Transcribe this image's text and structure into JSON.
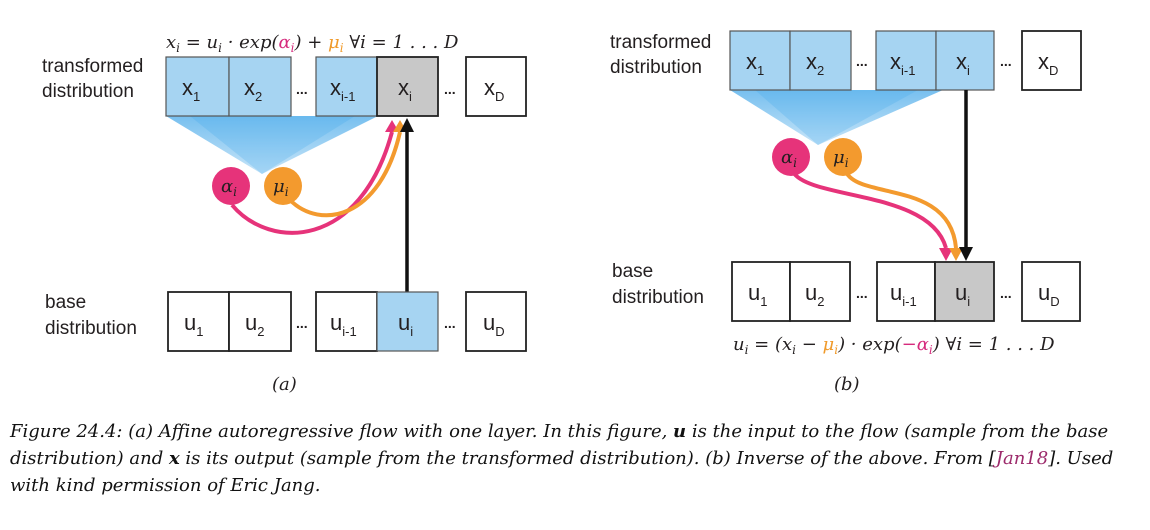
{
  "panel_a": {
    "label": "(a)",
    "equation": {
      "lhs": "x",
      "lhs_sub": "i",
      "mid1": " = u",
      "mid1_sub": "i",
      "mid2": " · exp(",
      "alpha": "α",
      "alpha_sub": "i",
      "mid3": ") + ",
      "mu": "μ",
      "mu_sub": "i",
      "forall": "   ∀i = 1 . . . D"
    },
    "top_label": [
      "transformed",
      "distribution"
    ],
    "bottom_label": [
      "base",
      "distribution"
    ],
    "top_cells": [
      {
        "main": "x",
        "sub": "1"
      },
      {
        "main": "x",
        "sub": "2"
      },
      {
        "main": "x",
        "sub": "i-1"
      },
      {
        "main": "x",
        "sub": "i"
      },
      {
        "main": "x",
        "sub": "D"
      }
    ],
    "bottom_cells": [
      {
        "main": "u",
        "sub": "1"
      },
      {
        "main": "u",
        "sub": "2"
      },
      {
        "main": "u",
        "sub": "i-1"
      },
      {
        "main": "u",
        "sub": "i"
      },
      {
        "main": "u",
        "sub": "D"
      }
    ],
    "alpha_node": {
      "main": "α",
      "sub": "i"
    },
    "mu_node": {
      "main": "μ",
      "sub": "i"
    }
  },
  "panel_b": {
    "label": "(b)",
    "equation": {
      "lhs": "u",
      "lhs_sub": "i",
      "mid1": " = (x",
      "mid1_sub": "i",
      "mid2": " − ",
      "mu": "μ",
      "mu_sub": "i",
      "mid3": ") · exp(",
      "alpha": "−α",
      "alpha_sub": "i",
      "mid4": ")",
      "forall": "   ∀i = 1 . . . D"
    },
    "top_label": [
      "transformed",
      "distribution"
    ],
    "bottom_label": [
      "base",
      "distribution"
    ],
    "top_cells": [
      {
        "main": "x",
        "sub": "1"
      },
      {
        "main": "x",
        "sub": "2"
      },
      {
        "main": "x",
        "sub": "i-1"
      },
      {
        "main": "x",
        "sub": "i"
      },
      {
        "main": "x",
        "sub": "D"
      }
    ],
    "bottom_cells": [
      {
        "main": "u",
        "sub": "1"
      },
      {
        "main": "u",
        "sub": "2"
      },
      {
        "main": "u",
        "sub": "i-1"
      },
      {
        "main": "u",
        "sub": "i"
      },
      {
        "main": "u",
        "sub": "D"
      }
    ],
    "alpha_node": {
      "main": "α",
      "sub": "i"
    },
    "mu_node": {
      "main": "μ",
      "sub": "i"
    }
  },
  "ellipsis": "...",
  "caption": {
    "prefix": "Figure 24.4: (a) Affine autoregressive flow with one layer. In this figure, ",
    "u": "u",
    "mid1": " is the input to the flow (sample from the base distribution) and ",
    "x": "x",
    "mid2": " is its output (sample from the transformed distribution). (b) Inverse of the above. From [",
    "ref": "Jan18",
    "suffix": "]. Used with kind permission of Eric Jang."
  },
  "colors": {
    "blue_cell": "#a6d4f2",
    "gray_cell": "#c8c8c8",
    "alpha": "#e6337a",
    "mu": "#f39a2e",
    "arrow": "#111111"
  }
}
